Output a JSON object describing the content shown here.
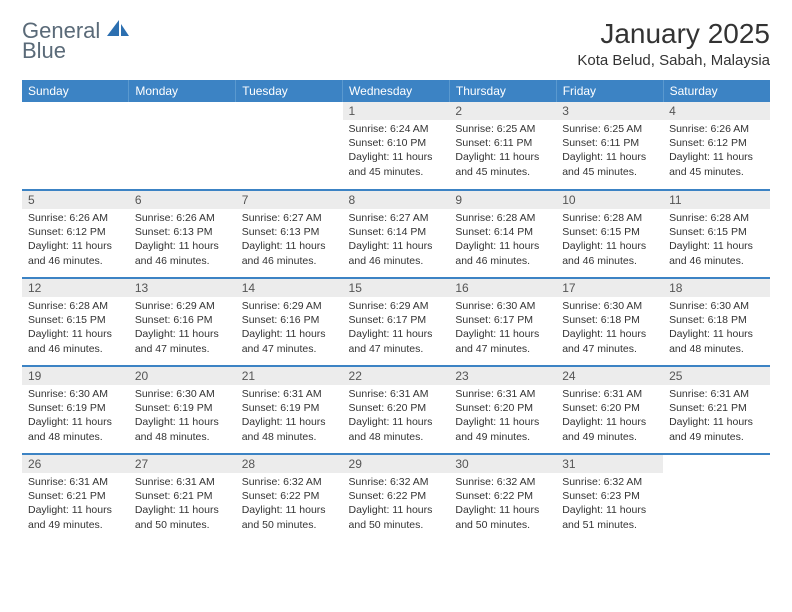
{
  "logo": {
    "text_a": "General",
    "text_b": "Blue"
  },
  "title": "January 2025",
  "location": "Kota Belud, Sabah, Malaysia",
  "colors": {
    "header_bg": "#3c83c4",
    "header_fg": "#ffffff",
    "daynum_bg": "#ececec",
    "row_border": "#3c83c4",
    "logo_icon": "#2c6fb0",
    "logo_text": "#5a6a78"
  },
  "weekdays": [
    "Sunday",
    "Monday",
    "Tuesday",
    "Wednesday",
    "Thursday",
    "Friday",
    "Saturday"
  ],
  "weeks": [
    [
      {
        "n": "",
        "sr": "",
        "ss": "",
        "dl": ""
      },
      {
        "n": "",
        "sr": "",
        "ss": "",
        "dl": ""
      },
      {
        "n": "",
        "sr": "",
        "ss": "",
        "dl": ""
      },
      {
        "n": "1",
        "sr": "Sunrise: 6:24 AM",
        "ss": "Sunset: 6:10 PM",
        "dl": "Daylight: 11 hours and 45 minutes."
      },
      {
        "n": "2",
        "sr": "Sunrise: 6:25 AM",
        "ss": "Sunset: 6:11 PM",
        "dl": "Daylight: 11 hours and 45 minutes."
      },
      {
        "n": "3",
        "sr": "Sunrise: 6:25 AM",
        "ss": "Sunset: 6:11 PM",
        "dl": "Daylight: 11 hours and 45 minutes."
      },
      {
        "n": "4",
        "sr": "Sunrise: 6:26 AM",
        "ss": "Sunset: 6:12 PM",
        "dl": "Daylight: 11 hours and 45 minutes."
      }
    ],
    [
      {
        "n": "5",
        "sr": "Sunrise: 6:26 AM",
        "ss": "Sunset: 6:12 PM",
        "dl": "Daylight: 11 hours and 46 minutes."
      },
      {
        "n": "6",
        "sr": "Sunrise: 6:26 AM",
        "ss": "Sunset: 6:13 PM",
        "dl": "Daylight: 11 hours and 46 minutes."
      },
      {
        "n": "7",
        "sr": "Sunrise: 6:27 AM",
        "ss": "Sunset: 6:13 PM",
        "dl": "Daylight: 11 hours and 46 minutes."
      },
      {
        "n": "8",
        "sr": "Sunrise: 6:27 AM",
        "ss": "Sunset: 6:14 PM",
        "dl": "Daylight: 11 hours and 46 minutes."
      },
      {
        "n": "9",
        "sr": "Sunrise: 6:28 AM",
        "ss": "Sunset: 6:14 PM",
        "dl": "Daylight: 11 hours and 46 minutes."
      },
      {
        "n": "10",
        "sr": "Sunrise: 6:28 AM",
        "ss": "Sunset: 6:15 PM",
        "dl": "Daylight: 11 hours and 46 minutes."
      },
      {
        "n": "11",
        "sr": "Sunrise: 6:28 AM",
        "ss": "Sunset: 6:15 PM",
        "dl": "Daylight: 11 hours and 46 minutes."
      }
    ],
    [
      {
        "n": "12",
        "sr": "Sunrise: 6:28 AM",
        "ss": "Sunset: 6:15 PM",
        "dl": "Daylight: 11 hours and 46 minutes."
      },
      {
        "n": "13",
        "sr": "Sunrise: 6:29 AM",
        "ss": "Sunset: 6:16 PM",
        "dl": "Daylight: 11 hours and 47 minutes."
      },
      {
        "n": "14",
        "sr": "Sunrise: 6:29 AM",
        "ss": "Sunset: 6:16 PM",
        "dl": "Daylight: 11 hours and 47 minutes."
      },
      {
        "n": "15",
        "sr": "Sunrise: 6:29 AM",
        "ss": "Sunset: 6:17 PM",
        "dl": "Daylight: 11 hours and 47 minutes."
      },
      {
        "n": "16",
        "sr": "Sunrise: 6:30 AM",
        "ss": "Sunset: 6:17 PM",
        "dl": "Daylight: 11 hours and 47 minutes."
      },
      {
        "n": "17",
        "sr": "Sunrise: 6:30 AM",
        "ss": "Sunset: 6:18 PM",
        "dl": "Daylight: 11 hours and 47 minutes."
      },
      {
        "n": "18",
        "sr": "Sunrise: 6:30 AM",
        "ss": "Sunset: 6:18 PM",
        "dl": "Daylight: 11 hours and 48 minutes."
      }
    ],
    [
      {
        "n": "19",
        "sr": "Sunrise: 6:30 AM",
        "ss": "Sunset: 6:19 PM",
        "dl": "Daylight: 11 hours and 48 minutes."
      },
      {
        "n": "20",
        "sr": "Sunrise: 6:30 AM",
        "ss": "Sunset: 6:19 PM",
        "dl": "Daylight: 11 hours and 48 minutes."
      },
      {
        "n": "21",
        "sr": "Sunrise: 6:31 AM",
        "ss": "Sunset: 6:19 PM",
        "dl": "Daylight: 11 hours and 48 minutes."
      },
      {
        "n": "22",
        "sr": "Sunrise: 6:31 AM",
        "ss": "Sunset: 6:20 PM",
        "dl": "Daylight: 11 hours and 48 minutes."
      },
      {
        "n": "23",
        "sr": "Sunrise: 6:31 AM",
        "ss": "Sunset: 6:20 PM",
        "dl": "Daylight: 11 hours and 49 minutes."
      },
      {
        "n": "24",
        "sr": "Sunrise: 6:31 AM",
        "ss": "Sunset: 6:20 PM",
        "dl": "Daylight: 11 hours and 49 minutes."
      },
      {
        "n": "25",
        "sr": "Sunrise: 6:31 AM",
        "ss": "Sunset: 6:21 PM",
        "dl": "Daylight: 11 hours and 49 minutes."
      }
    ],
    [
      {
        "n": "26",
        "sr": "Sunrise: 6:31 AM",
        "ss": "Sunset: 6:21 PM",
        "dl": "Daylight: 11 hours and 49 minutes."
      },
      {
        "n": "27",
        "sr": "Sunrise: 6:31 AM",
        "ss": "Sunset: 6:21 PM",
        "dl": "Daylight: 11 hours and 50 minutes."
      },
      {
        "n": "28",
        "sr": "Sunrise: 6:32 AM",
        "ss": "Sunset: 6:22 PM",
        "dl": "Daylight: 11 hours and 50 minutes."
      },
      {
        "n": "29",
        "sr": "Sunrise: 6:32 AM",
        "ss": "Sunset: 6:22 PM",
        "dl": "Daylight: 11 hours and 50 minutes."
      },
      {
        "n": "30",
        "sr": "Sunrise: 6:32 AM",
        "ss": "Sunset: 6:22 PM",
        "dl": "Daylight: 11 hours and 50 minutes."
      },
      {
        "n": "31",
        "sr": "Sunrise: 6:32 AM",
        "ss": "Sunset: 6:23 PM",
        "dl": "Daylight: 11 hours and 51 minutes."
      },
      {
        "n": "",
        "sr": "",
        "ss": "",
        "dl": ""
      }
    ]
  ]
}
